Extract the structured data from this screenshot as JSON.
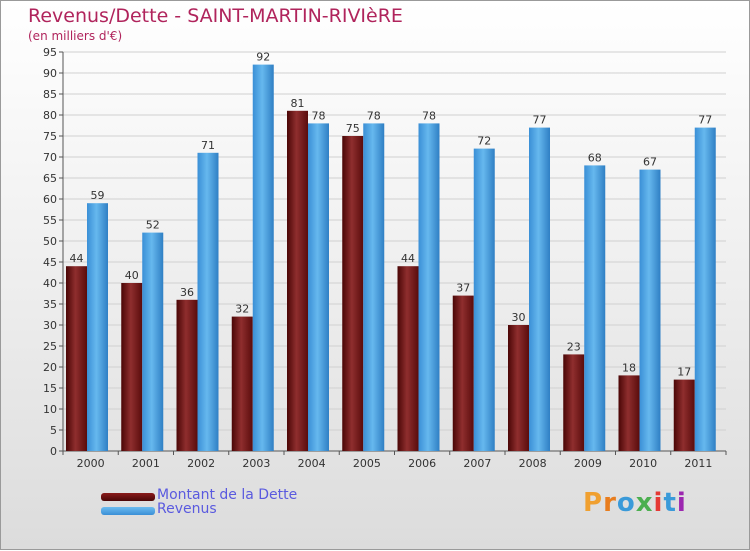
{
  "title": "Revenus/Dette - SAINT-MARTIN-RIVIèRE",
  "subtitle": "(en milliers d'€)",
  "colors": {
    "dette_dark": "#5a0a0a",
    "dette_light": "#8a2a2a",
    "revenus_dark": "#2d7bbf",
    "revenus_light": "#5aaee8"
  },
  "legend": {
    "items": [
      {
        "label": "Montant de la Dette",
        "color": "#6b0f0f"
      },
      {
        "label": "Revenus",
        "color": "#4a9fe0"
      }
    ]
  },
  "brand": {
    "text": "Proxiti",
    "letters": [
      "P",
      "r",
      "o",
      "x",
      "i",
      "t",
      "i"
    ],
    "colors": [
      "#f0a030",
      "#e87d1e",
      "#3a9ad9",
      "#4caf50",
      "#e53935",
      "#3a9ad9",
      "#9c27b0"
    ]
  },
  "chart_data": {
    "type": "bar",
    "categories": [
      "2000",
      "2001",
      "2002",
      "2003",
      "2004",
      "2005",
      "2006",
      "2007",
      "2008",
      "2009",
      "2010",
      "2011"
    ],
    "series": [
      {
        "name": "Montant de la Dette",
        "values": [
          44,
          40,
          36,
          32,
          81,
          75,
          44,
          37,
          30,
          23,
          18,
          17
        ]
      },
      {
        "name": "Revenus",
        "values": [
          59,
          52,
          71,
          92,
          78,
          78,
          78,
          72,
          77,
          68,
          67,
          77
        ]
      }
    ],
    "ylim": [
      0,
      95
    ],
    "yticks": [
      0,
      5,
      10,
      15,
      20,
      25,
      30,
      35,
      40,
      45,
      50,
      55,
      60,
      65,
      70,
      75,
      80,
      85,
      90,
      95
    ],
    "grid": true,
    "legend_position": "bottom-left",
    "title": "Revenus/Dette - SAINT-MARTIN-RIVIèRE",
    "xlabel": "",
    "ylabel": ""
  }
}
